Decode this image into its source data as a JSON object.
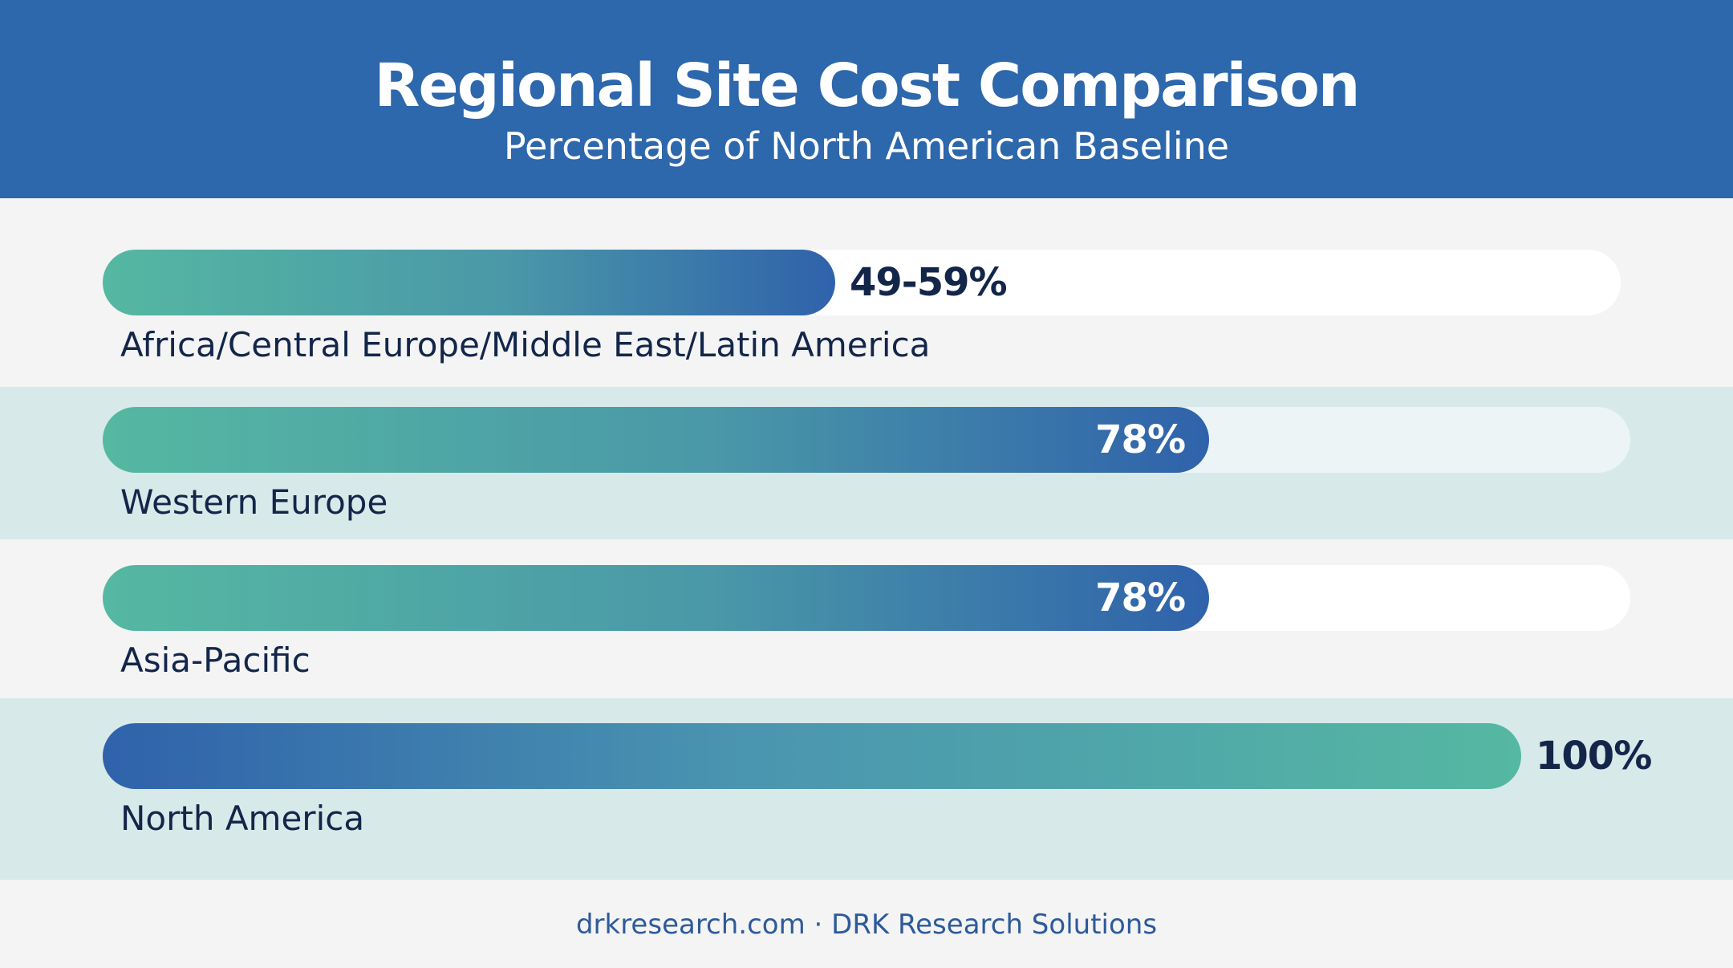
{
  "colors": {
    "header": "#2d67ac",
    "teal": "#55b8a2",
    "blue": "#2f62ab",
    "band_light": "#f4f4f4",
    "band_tint": "#d8e9ea",
    "label_dark": "#13264a"
  },
  "chart_data": {
    "type": "bar",
    "orientation": "horizontal",
    "title": "Regional Site Cost Comparison",
    "subtitle": "Percentage of North American Baseline",
    "categories": [
      "Africa/Central Europe/Middle East/Latin America",
      "Western Europe",
      "Asia-Pacific",
      "North America"
    ],
    "values": [
      59,
      78,
      78,
      100
    ],
    "value_labels": [
      "49-59%",
      "78%",
      "78%",
      "100%"
    ],
    "xlim": [
      0,
      106
    ],
    "grid": false,
    "legend": "none"
  },
  "footer": "drkresearch.com · DRK Research Solutions"
}
